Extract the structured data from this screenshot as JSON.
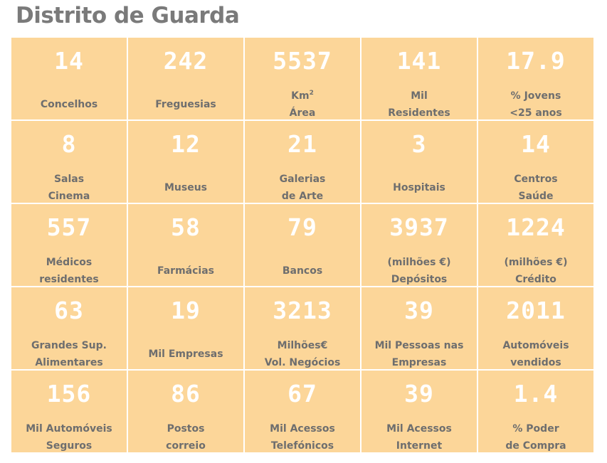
{
  "title": "Distrito de Guarda",
  "cells": [
    {
      "value": "14",
      "line1": "Concelhos",
      "line2": ""
    },
    {
      "value": "242",
      "line1": "Freguesias",
      "line2": ""
    },
    {
      "value": "5537",
      "line1": "Km",
      "sup": "2",
      "line2": "Área"
    },
    {
      "value": "141",
      "line1": "Mil",
      "line2": "Residentes"
    },
    {
      "value": "17.9",
      "line1": "% Jovens",
      "line2": "<25 anos"
    },
    {
      "value": "8",
      "line1": "Salas",
      "line2": "Cinema"
    },
    {
      "value": "12",
      "line1": "Museus",
      "line2": ""
    },
    {
      "value": "21",
      "line1": "Galerias",
      "line2": "de Arte"
    },
    {
      "value": "3",
      "line1": "Hospitais",
      "line2": ""
    },
    {
      "value": "14",
      "line1": "Centros",
      "line2": "Saúde"
    },
    {
      "value": "557",
      "line1": "Médicos",
      "line2": "residentes"
    },
    {
      "value": "58",
      "line1": "Farmácias",
      "line2": ""
    },
    {
      "value": "79",
      "line1": "Bancos",
      "line2": ""
    },
    {
      "value": "3937",
      "line1": "(milhões €)",
      "line2": "Depósitos"
    },
    {
      "value": "1224",
      "line1": "(milhões €)",
      "line2": "Crédito"
    },
    {
      "value": "63",
      "line1": "Grandes Sup.",
      "line2": "Alimentares"
    },
    {
      "value": "19",
      "line1": "Mil Empresas",
      "line2": ""
    },
    {
      "value": "3213",
      "line1": "Milhões€",
      "line2": "Vol. Negócios"
    },
    {
      "value": "39",
      "line1": "Mil Pessoas nas",
      "line2": "Empresas"
    },
    {
      "value": "2011",
      "line1": "Automóveis",
      "line2": "vendidos"
    },
    {
      "value": "156",
      "line1": "Mil Automóveis",
      "line2": "Seguros"
    },
    {
      "value": "86",
      "line1": "Postos",
      "line2": "correio"
    },
    {
      "value": "67",
      "line1": "Mil Acessos",
      "line2": "Telefónicos"
    },
    {
      "value": "39",
      "line1": "Mil Acessos",
      "line2": "Internet"
    },
    {
      "value": "1.4",
      "line1": "% Poder",
      "line2": "de Compra"
    }
  ]
}
